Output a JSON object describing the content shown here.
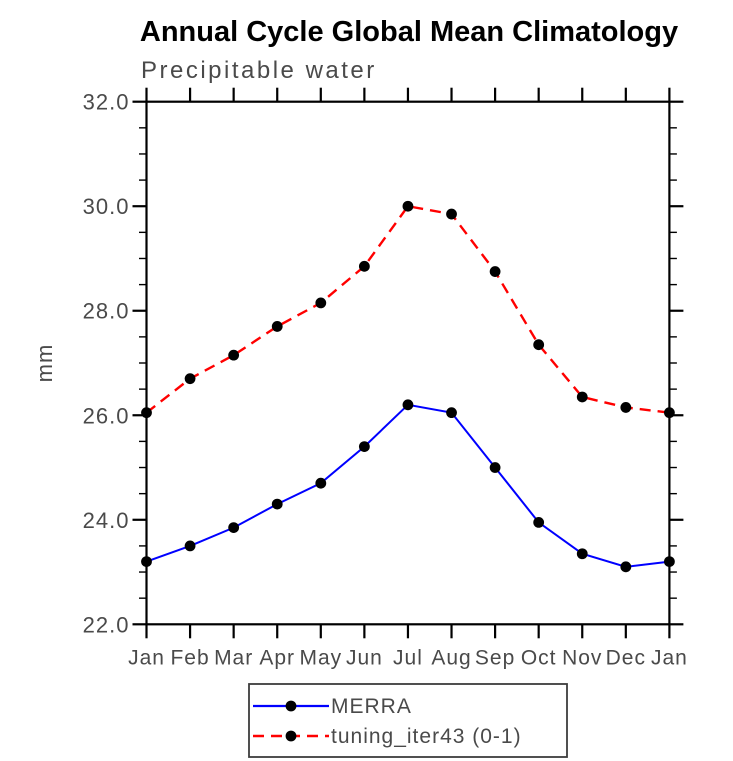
{
  "chart_data": {
    "type": "line",
    "title": "Annual Cycle Global Mean Climatology",
    "subtitle": "Precipitable water",
    "xlabel": "",
    "ylabel": "mm",
    "categories": [
      "Jan",
      "Feb",
      "Mar",
      "Apr",
      "May",
      "Jun",
      "Jul",
      "Aug",
      "Sep",
      "Oct",
      "Nov",
      "Dec",
      "Jan"
    ],
    "ylim": [
      22.0,
      32.0
    ],
    "ytick_major_step": 2.0,
    "ytick_minor_step": 0.5,
    "ytick_labels": [
      "22.0",
      "24.0",
      "26.0",
      "28.0",
      "30.0",
      "32.0"
    ],
    "grid": false,
    "frame": "box",
    "legend_position": "bottom-center",
    "marker_color": "#000000",
    "series": [
      {
        "name": "MERRA",
        "color": "#0000ff",
        "style": "solid",
        "marker": "circle",
        "values": [
          23.2,
          23.5,
          23.85,
          24.3,
          24.7,
          25.4,
          26.2,
          26.05,
          25.0,
          23.95,
          23.35,
          23.1,
          23.2
        ]
      },
      {
        "name": "tuning_iter43 (0-1)",
        "color": "#ff0000",
        "style": "dashed",
        "marker": "circle",
        "values": [
          26.05,
          26.7,
          27.15,
          27.7,
          28.15,
          28.85,
          30.0,
          29.85,
          28.75,
          27.35,
          26.35,
          26.15,
          26.05
        ]
      }
    ]
  }
}
